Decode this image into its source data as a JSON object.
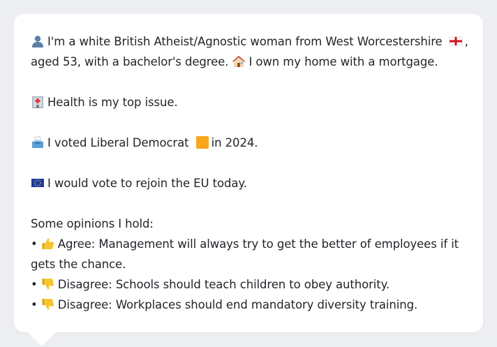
{
  "colors": {
    "page_background": "#eceef1",
    "card_background": "#ffffff",
    "text": "#1f2328",
    "libdem_orange": "#faa61a"
  },
  "persona": {
    "intro_part1": "I'm a white British Atheist/Agnostic woman from West Worcestershire",
    "intro_part2": ",",
    "intro_line2_part1": "aged 53, with a bachelor's degree.",
    "intro_line2_part2": "I own my home with a mortgage.",
    "health": "Health is my top issue.",
    "vote_part1": "I voted Liberal Democrat",
    "vote_part2": "in 2024.",
    "eu": "I would vote to rejoin the EU today.",
    "opinions_heading": "Some opinions I hold:",
    "bullet": "•",
    "opinions": [
      {
        "stance": "Agree:",
        "text": "Management will always try to get the better of employees if it gets the chance.",
        "icon": "thumbs-up-icon"
      },
      {
        "stance": "Disagree:",
        "text": "Schools should teach children to obey authority.",
        "icon": "thumbs-down-icon"
      },
      {
        "stance": "Disagree:",
        "text": "Workplaces should end mandatory diversity training.",
        "icon": "thumbs-down-icon"
      }
    ]
  },
  "icons": [
    "person-icon",
    "england-flag-icon",
    "house-icon",
    "hospital-icon",
    "ballot-box-icon",
    "orange-square-icon",
    "eu-flag-icon",
    "thumbs-up-icon",
    "thumbs-down-icon"
  ]
}
